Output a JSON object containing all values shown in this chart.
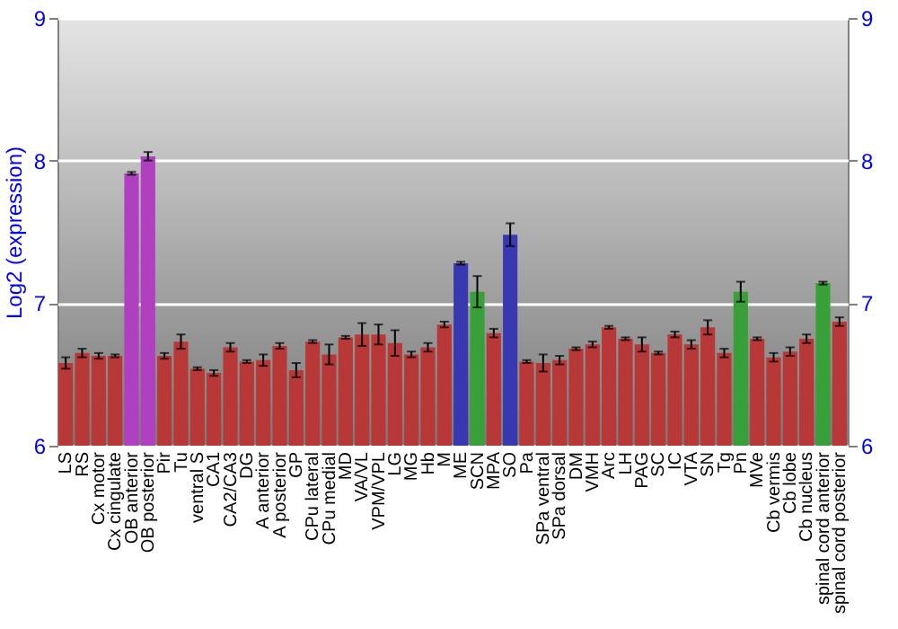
{
  "chart_data": {
    "type": "bar",
    "ylabel": "Log2 (expression)",
    "categories": [
      "LS",
      "RS",
      "Cx motor",
      "Cx cingulate",
      "OB anterior",
      "OB posterior",
      "Pir",
      "Tu",
      "ventral S",
      "CA1",
      "CA2/CA3",
      "DG",
      "A anterior",
      "A posterior",
      "GP",
      "CPu lateral",
      "CPu medial",
      "MD",
      "VA/VL",
      "VPM/VPL",
      "LG",
      "MG",
      "Hb",
      "M",
      "ME",
      "SCN",
      "MPA",
      "SO",
      "Pa",
      "SPa ventral",
      "SPa dorsal",
      "DM",
      "VMH",
      "Arc",
      "LH",
      "PAG",
      "SC",
      "IC",
      "VTA",
      "SN",
      "Tg",
      "Pn",
      "MVe",
      "Cb vermis",
      "Cb lobe",
      "Cb nucleus",
      "spinal cord anterior",
      "spinal cord posterior"
    ],
    "values": [
      6.58,
      6.65,
      6.63,
      6.63,
      7.91,
      8.03,
      6.63,
      6.73,
      6.54,
      6.51,
      6.69,
      6.59,
      6.6,
      6.7,
      6.53,
      6.73,
      6.64,
      6.76,
      6.78,
      6.78,
      6.72,
      6.64,
      6.69,
      6.85,
      7.28,
      7.08,
      6.79,
      7.48,
      6.59,
      6.58,
      6.6,
      6.68,
      6.71,
      6.83,
      6.75,
      6.71,
      6.65,
      6.78,
      6.71,
      6.83,
      6.65,
      7.08,
      6.75,
      6.62,
      6.66,
      6.75,
      7.14,
      6.87
    ],
    "errors": [
      0.04,
      0.03,
      0.02,
      0.01,
      0.01,
      0.03,
      0.02,
      0.05,
      0.01,
      0.02,
      0.03,
      0.01,
      0.04,
      0.02,
      0.05,
      0.01,
      0.07,
      0.01,
      0.08,
      0.07,
      0.09,
      0.02,
      0.03,
      0.02,
      0.01,
      0.11,
      0.03,
      0.08,
      0.01,
      0.06,
      0.03,
      0.01,
      0.02,
      0.01,
      0.01,
      0.05,
      0.01,
      0.02,
      0.03,
      0.05,
      0.03,
      0.07,
      0.01,
      0.03,
      0.03,
      0.03,
      0.01,
      0.03
    ],
    "colors": [
      "#b83838",
      "#b83838",
      "#b83838",
      "#b83838",
      "#b040c0",
      "#b040c0",
      "#b83838",
      "#b83838",
      "#b83838",
      "#b83838",
      "#b83838",
      "#b83838",
      "#b83838",
      "#b83838",
      "#b83838",
      "#b83838",
      "#b83838",
      "#b83838",
      "#b83838",
      "#b83838",
      "#b83838",
      "#b83838",
      "#b83838",
      "#b83838",
      "#3838b0",
      "#38a038",
      "#b83838",
      "#3838b0",
      "#b83838",
      "#b83838",
      "#b83838",
      "#b83838",
      "#b83838",
      "#b83838",
      "#b83838",
      "#b83838",
      "#b83838",
      "#b83838",
      "#b83838",
      "#b83838",
      "#b83838",
      "#38a038",
      "#b83838",
      "#b83838",
      "#b83838",
      "#b83838",
      "#38a038",
      "#b83838"
    ],
    "ylim": [
      6,
      9
    ],
    "yticks": [
      6,
      7,
      8,
      9
    ],
    "y2lim": [
      6,
      9
    ],
    "y2ticks": [
      6,
      7,
      8,
      9
    ],
    "grid": "y"
  }
}
